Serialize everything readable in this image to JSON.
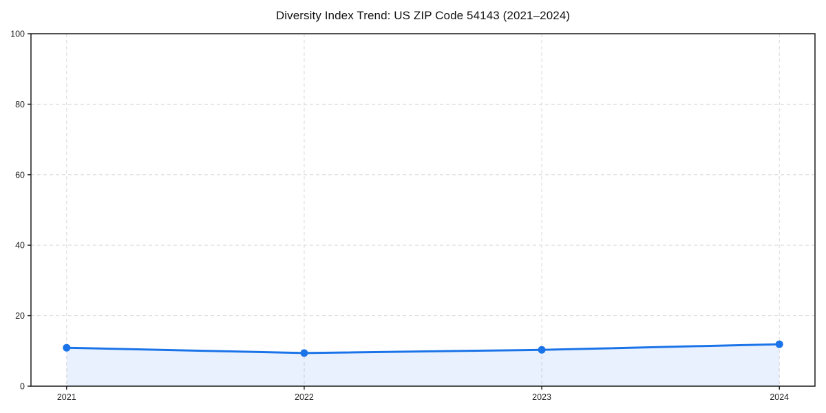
{
  "title": "Diversity Index Trend: US ZIP Code 54143 (2021–2024)",
  "chart_data": {
    "type": "line",
    "title": "Diversity Index Trend: US ZIP Code 54143 (2021–2024)",
    "x": [
      2021,
      2022,
      2023,
      2024
    ],
    "series": [
      {
        "name": "Diversity Index",
        "values": [
          10.9,
          9.4,
          10.3,
          11.9
        ]
      }
    ],
    "xlabel": "",
    "ylabel": "",
    "xlim": [
      2020.85,
      2024.15
    ],
    "ylim": [
      0,
      100
    ],
    "yticks": [
      0,
      20,
      40,
      60,
      80,
      100
    ],
    "xtick_labels": [
      "2021",
      "2022",
      "2023",
      "2024"
    ],
    "grid": "dashed-both",
    "legend": "none",
    "marker": "circle",
    "colors": {
      "line": "#1a73e8",
      "marker": "#1a73e8",
      "fill": "rgba(26,115,232,0.10)",
      "grid": "#dcdcdc",
      "spine": "#1a1a1a",
      "tick": "#1a1a1a",
      "tick_label": "#1f1f1f",
      "background": "#ffffff"
    }
  }
}
